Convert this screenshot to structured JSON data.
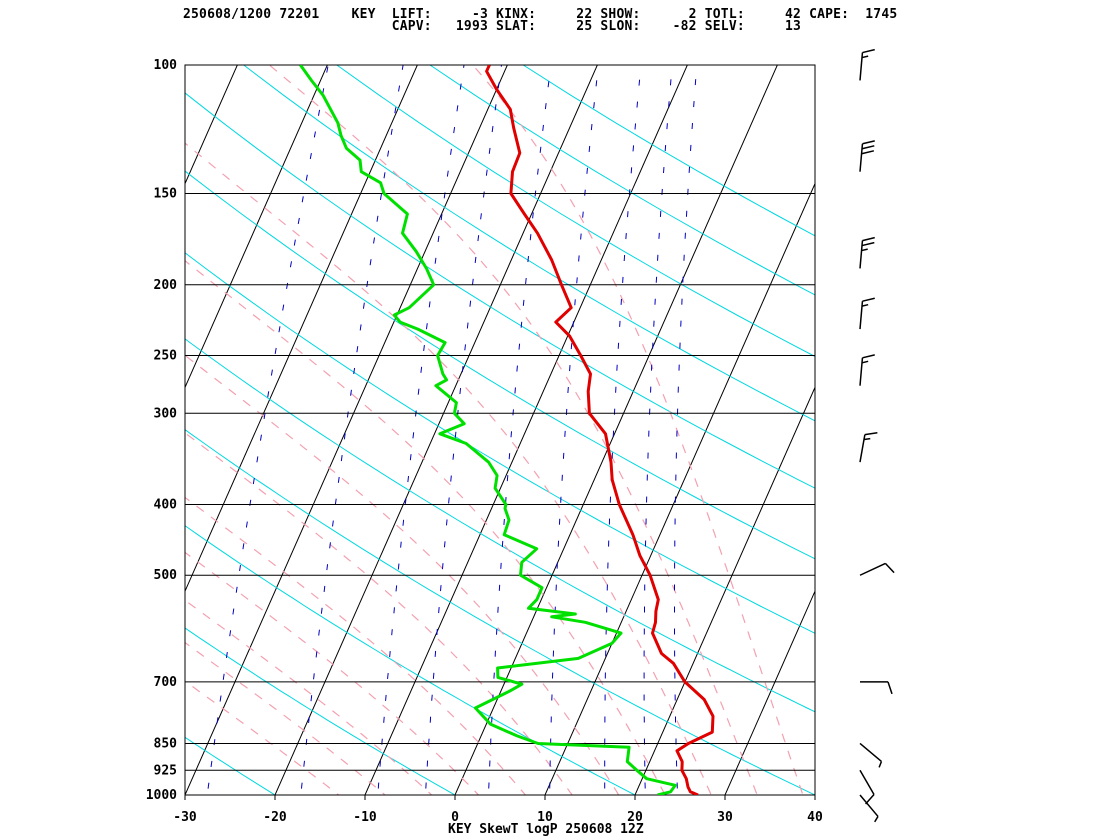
{
  "header": {
    "line1": "250608/1200 72201    KEY  LIFT:     -3 KINX:     22 SHOW:      2 TOTL:     42 CAPE:  1745",
    "line2": "                          CAPV:   1993 SLAT:     25 SLON:    -82 SELV:     13"
  },
  "footer": "KEY SkewT logP 250608 12Z",
  "colors": {
    "temperature": "#e00000",
    "dewpoint": "#00e000",
    "isotherm": "#000000",
    "dry_adiabat": "#00d8e0",
    "moist_adiabat": "#f4a0b0",
    "mixing_ratio": "#0000c0",
    "wind": "#000000"
  },
  "chart_data": {
    "type": "skewt",
    "title": "",
    "xlabel": "",
    "ylabel": "",
    "x_ticks": [
      -30,
      -20,
      -10,
      0,
      10,
      20,
      30,
      40
    ],
    "p_ticks": [
      100,
      150,
      200,
      250,
      300,
      400,
      500,
      700,
      850,
      925,
      1000
    ],
    "xlim": [
      -30,
      40
    ],
    "plim": [
      1000,
      100
    ],
    "log_p": true,
    "temperature": [
      [
        1000,
        27.0
      ],
      [
        990,
        26.0
      ],
      [
        975,
        25.5
      ],
      [
        950,
        24.9
      ],
      [
        925,
        24.0
      ],
      [
        900,
        23.6
      ],
      [
        870,
        22.5
      ],
      [
        850,
        23.4
      ],
      [
        820,
        25.5
      ],
      [
        780,
        24.8
      ],
      [
        740,
        23.0
      ],
      [
        700,
        20.0
      ],
      [
        660,
        17.8
      ],
      [
        640,
        16.0
      ],
      [
        600,
        14.0
      ],
      [
        580,
        13.8
      ],
      [
        560,
        13.3
      ],
      [
        540,
        13.0
      ],
      [
        500,
        10.9
      ],
      [
        470,
        8.8
      ],
      [
        440,
        7.0
      ],
      [
        400,
        4.0
      ],
      [
        370,
        2.0
      ],
      [
        350,
        1.0
      ],
      [
        320,
        -1.0
      ],
      [
        300,
        -3.8
      ],
      [
        280,
        -5.0
      ],
      [
        265,
        -5.6
      ],
      [
        250,
        -7.6
      ],
      [
        235,
        -9.8
      ],
      [
        225,
        -12.0
      ],
      [
        215,
        -11.0
      ],
      [
        200,
        -13.2
      ],
      [
        185,
        -15.5
      ],
      [
        170,
        -18.4
      ],
      [
        160,
        -20.8
      ],
      [
        150,
        -23.3
      ],
      [
        140,
        -24.2
      ],
      [
        132,
        -24.3
      ],
      [
        122,
        -26.2
      ],
      [
        115,
        -27.5
      ],
      [
        108,
        -30.0
      ],
      [
        102,
        -32.0
      ],
      [
        100,
        -32.0
      ]
    ],
    "dewpoint": [
      [
        1000,
        22.5
      ],
      [
        990,
        23.8
      ],
      [
        970,
        24.0
      ],
      [
        950,
        20.5
      ],
      [
        925,
        19.0
      ],
      [
        900,
        17.5
      ],
      [
        860,
        17.0
      ],
      [
        850,
        6.7
      ],
      [
        830,
        4.0
      ],
      [
        800,
        0.5
      ],
      [
        760,
        -2.0
      ],
      [
        720,
        1.0
      ],
      [
        705,
        2.0
      ],
      [
        700,
        1.0
      ],
      [
        690,
        -1.0
      ],
      [
        670,
        -1.5
      ],
      [
        650,
        7.0
      ],
      [
        620,
        10.0
      ],
      [
        600,
        10.5
      ],
      [
        580,
        6.0
      ],
      [
        570,
        2.0
      ],
      [
        565,
        4.5
      ],
      [
        555,
        -1.0
      ],
      [
        540,
        -0.5
      ],
      [
        520,
        -0.5
      ],
      [
        500,
        -3.5
      ],
      [
        480,
        -4.0
      ],
      [
        460,
        -3.0
      ],
      [
        440,
        -7.3
      ],
      [
        420,
        -7.5
      ],
      [
        405,
        -8.5
      ],
      [
        400,
        -8.6
      ],
      [
        380,
        -10.6
      ],
      [
        365,
        -11.0
      ],
      [
        350,
        -12.6
      ],
      [
        330,
        -16.0
      ],
      [
        320,
        -19.4
      ],
      [
        310,
        -17.2
      ],
      [
        300,
        -18.8
      ],
      [
        290,
        -19.1
      ],
      [
        275,
        -22.2
      ],
      [
        270,
        -21.3
      ],
      [
        265,
        -22.0
      ],
      [
        250,
        -23.5
      ],
      [
        240,
        -23.3
      ],
      [
        230,
        -27.0
      ],
      [
        225,
        -29.3
      ],
      [
        220,
        -30.3
      ],
      [
        215,
        -29.0
      ],
      [
        200,
        -27.4
      ],
      [
        190,
        -29.0
      ],
      [
        180,
        -31.0
      ],
      [
        170,
        -33.4
      ],
      [
        160,
        -33.8
      ],
      [
        150,
        -37.4
      ],
      [
        145,
        -38.3
      ],
      [
        140,
        -41.0
      ],
      [
        135,
        -41.7
      ],
      [
        130,
        -43.8
      ],
      [
        125,
        -45.0
      ],
      [
        120,
        -46.0
      ],
      [
        110,
        -49.0
      ],
      [
        105,
        -51.0
      ],
      [
        100,
        -53.0
      ]
    ],
    "wind_barbs": [
      {
        "p": 1000,
        "dir": 140,
        "speed_kt": 5
      },
      {
        "p": 925,
        "dir": 150,
        "speed_kt": 10
      },
      {
        "p": 850,
        "dir": 130,
        "speed_kt": 5
      },
      {
        "p": 700,
        "dir": 90,
        "speed_kt": 10
      },
      {
        "p": 500,
        "dir": 65,
        "speed_kt": 10
      },
      {
        "p": 350,
        "dir": 10,
        "speed_kt": 15
      },
      {
        "p": 275,
        "dir": 5,
        "speed_kt": 15
      },
      {
        "p": 230,
        "dir": 5,
        "speed_kt": 15
      },
      {
        "p": 190,
        "dir": 5,
        "speed_kt": 25
      },
      {
        "p": 140,
        "dir": 5,
        "speed_kt": 30
      },
      {
        "p": 105,
        "dir": 5,
        "speed_kt": 15
      }
    ]
  }
}
